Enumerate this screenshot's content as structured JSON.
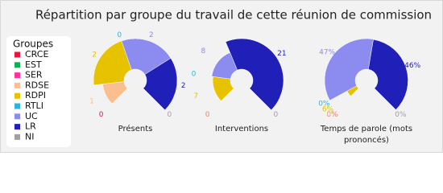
{
  "title": "Répartition par groupe du travail de cette réunion de commission",
  "legend": {
    "title": "Groupes"
  },
  "chart_data": [
    {
      "type": "pie",
      "title": "Présents",
      "categories": [
        "CRCE",
        "EST",
        "SER",
        "RDSE",
        "RDPI",
        "RTLI",
        "UC",
        "LR",
        "NI"
      ],
      "colors": [
        "#e8173a",
        "#10b050",
        "#ff3399",
        "#fbbf8f",
        "#e6c200",
        "#2bb5d8",
        "#8c8cf0",
        "#2020b8",
        "#a0a0a0"
      ],
      "values": [
        0,
        0,
        0,
        1,
        2,
        0,
        2,
        2,
        0
      ]
    },
    {
      "type": "pie",
      "title": "Interventions",
      "categories": [
        "CRCE",
        "EST",
        "SER",
        "RDSE",
        "RDPI",
        "RTLI",
        "UC",
        "LR",
        "NI"
      ],
      "colors": [
        "#e8173a",
        "#10b050",
        "#ff3399",
        "#fbbf8f",
        "#e6c200",
        "#2bb5d8",
        "#8c8cf0",
        "#2020b8",
        "#a0a0a0"
      ],
      "values": [
        0,
        0,
        0,
        0,
        7,
        0,
        8,
        21,
        0
      ]
    },
    {
      "type": "pie",
      "title": "Temps de parole (mots prononcés)",
      "categories": [
        "CRCE",
        "EST",
        "SER",
        "RDSE",
        "RDPI",
        "RTLI",
        "UC",
        "LR",
        "NI"
      ],
      "colors": [
        "#e8173a",
        "#10b050",
        "#ff3399",
        "#fbbf8f",
        "#e6c200",
        "#2bb5d8",
        "#8c8cf0",
        "#2020b8",
        "#a0a0a0"
      ],
      "values": [
        0,
        0,
        0,
        0,
        6,
        0,
        47,
        46,
        0
      ],
      "value_labels": [
        "0%",
        "0%",
        "0%",
        "0%",
        "6%",
        "0%",
        "47%",
        "46%",
        "0%"
      ]
    }
  ]
}
